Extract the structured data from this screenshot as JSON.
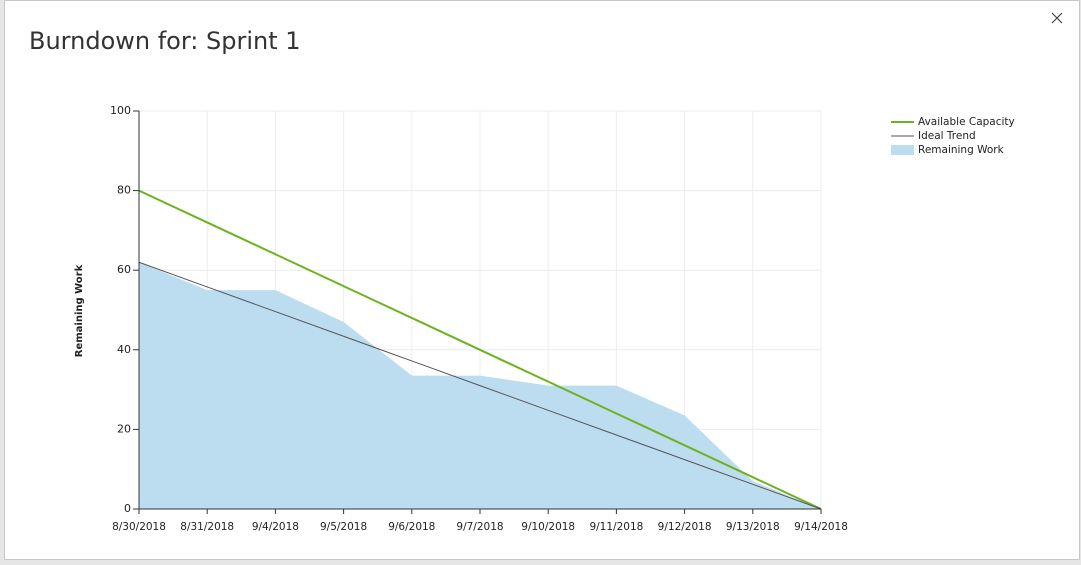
{
  "chart_data": {
    "type": "line",
    "title": "Burndown for: Sprint 1",
    "y_label": "Remaining Work",
    "categories": [
      "8/30/2018",
      "8/31/2018",
      "9/4/2018",
      "9/5/2018",
      "9/6/2018",
      "9/7/2018",
      "9/10/2018",
      "9/11/2018",
      "9/12/2018",
      "9/13/2018",
      "9/14/2018"
    ],
    "series": [
      {
        "name": "Available Capacity",
        "color": "#6cb31f",
        "style": "line",
        "values": [
          80,
          72,
          64,
          56,
          48,
          40,
          32,
          24,
          16,
          8,
          0
        ]
      },
      {
        "name": "Ideal Trend",
        "color": "#555555",
        "style": "line",
        "values": [
          62,
          55.8,
          49.6,
          43.4,
          37.2,
          31,
          24.8,
          18.6,
          12.4,
          6.2,
          0
        ]
      },
      {
        "name": "Remaining Work",
        "color": "#bcdcef",
        "style": "area",
        "values": [
          62,
          55,
          55,
          47,
          33.5,
          33.5,
          31,
          31,
          23.5,
          7,
          0
        ]
      }
    ],
    "ylim": [
      0,
      100
    ],
    "yticks": [
      0,
      20,
      40,
      60,
      80,
      100
    ],
    "grid": true,
    "legend": "top-right"
  }
}
